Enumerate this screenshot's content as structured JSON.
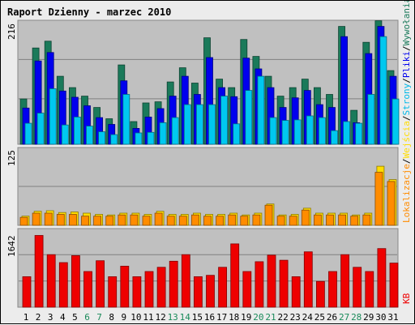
{
  "title": "Raport Dzienny -  marzec 2010",
  "legend": {
    "lokalizacje": "Lokalizacje",
    "sep1": "/",
    "wejscia": "Wejścia",
    "sep2": "/",
    "strony": "Strony",
    "sep3": "/",
    "pliki": "Pliki",
    "sep4": "/",
    "wywolania": "Wywołania",
    "kb": "KB"
  },
  "colors": {
    "background": "#ececec",
    "plot_background": "#c0c0c0",
    "title": "#0000cc",
    "grid": "#808080",
    "wywolania": "#1a7a5a",
    "pliki": "#0000ee",
    "strony": "#00c8f0",
    "wejscia": "#ffdd00",
    "lokalizacje": "#ff8c00",
    "kb": "#ee0000",
    "weekend_label": "#1a8a5a",
    "weekday_label": "#000000"
  },
  "chart_data": [
    {
      "type": "bar",
      "panel": "hits",
      "ymax_label": "216",
      "ylim": [
        0,
        216
      ],
      "categories": [
        "1",
        "2",
        "3",
        "4",
        "5",
        "6",
        "7",
        "8",
        "9",
        "10",
        "11",
        "12",
        "13",
        "14",
        "15",
        "16",
        "17",
        "18",
        "19",
        "20",
        "21",
        "22",
        "23",
        "24",
        "25",
        "26",
        "27",
        "28",
        "29",
        "30",
        "31"
      ],
      "weekend_days": [
        "6",
        "7",
        "13",
        "14",
        "20",
        "21",
        "27",
        "28"
      ],
      "series": [
        {
          "name": "Wywołania",
          "values": [
            80,
            170,
            182,
            120,
            100,
            85,
            65,
            45,
            140,
            40,
            73,
            75,
            110,
            135,
            108,
            188,
            115,
            100,
            185,
            155,
            120,
            85,
            100,
            115,
            100,
            88,
            208,
            60,
            180,
            218,
            130
          ]
        },
        {
          "name": "Pliki",
          "values": [
            64,
            147,
            162,
            94,
            83,
            68,
            47,
            35,
            112,
            28,
            48,
            63,
            85,
            120,
            88,
            153,
            100,
            84,
            152,
            133,
            100,
            65,
            82,
            95,
            70,
            65,
            190,
            38,
            160,
            208,
            120
          ]
        },
        {
          "name": "Strony",
          "values": [
            37,
            55,
            98,
            34,
            48,
            32,
            22,
            17,
            88,
            20,
            21,
            38,
            47,
            70,
            70,
            70,
            85,
            36,
            95,
            120,
            47,
            42,
            43,
            50,
            47,
            24,
            40,
            37,
            88,
            190,
            80
          ]
        }
      ]
    },
    {
      "type": "bar",
      "panel": "visits",
      "ymax_label": "125",
      "ylim": [
        0,
        125
      ],
      "categories": [
        "1",
        "2",
        "3",
        "4",
        "5",
        "6",
        "7",
        "8",
        "9",
        "10",
        "11",
        "12",
        "13",
        "14",
        "15",
        "16",
        "17",
        "18",
        "19",
        "20",
        "21",
        "22",
        "23",
        "24",
        "25",
        "26",
        "27",
        "28",
        "29",
        "30",
        "31"
      ],
      "series": [
        {
          "name": "Wejścia",
          "values": [
            15,
            23,
            24,
            21,
            22,
            20,
            18,
            17,
            20,
            20,
            18,
            23,
            18,
            18,
            20,
            18,
            18,
            20,
            17,
            20,
            35,
            17,
            18,
            28,
            20,
            20,
            20,
            17,
            20,
            97,
            75
          ]
        },
        {
          "name": "Lokalizacje",
          "values": [
            13,
            20,
            20,
            18,
            18,
            15,
            15,
            15,
            17,
            17,
            15,
            20,
            15,
            15,
            17,
            15,
            15,
            17,
            15,
            17,
            33,
            15,
            15,
            25,
            17,
            17,
            17,
            15,
            17,
            87,
            72
          ]
        }
      ]
    },
    {
      "type": "bar",
      "panel": "kb",
      "ymax_label": "1642",
      "ylim": [
        0,
        1642
      ],
      "categories": [
        "1",
        "2",
        "3",
        "4",
        "5",
        "6",
        "7",
        "8",
        "9",
        "10",
        "11",
        "12",
        "13",
        "14",
        "15",
        "16",
        "17",
        "18",
        "19",
        "20",
        "21",
        "22",
        "23",
        "24",
        "25",
        "26",
        "27",
        "28",
        "29",
        "30",
        "31"
      ],
      "series": [
        {
          "name": "KB",
          "values": [
            650,
            1530,
            1120,
            950,
            1100,
            760,
            990,
            650,
            875,
            650,
            760,
            850,
            980,
            1120,
            650,
            680,
            850,
            1350,
            760,
            970,
            1110,
            1000,
            650,
            1180,
            550,
            760,
            1120,
            850,
            760,
            1250,
            940
          ]
        }
      ]
    }
  ]
}
